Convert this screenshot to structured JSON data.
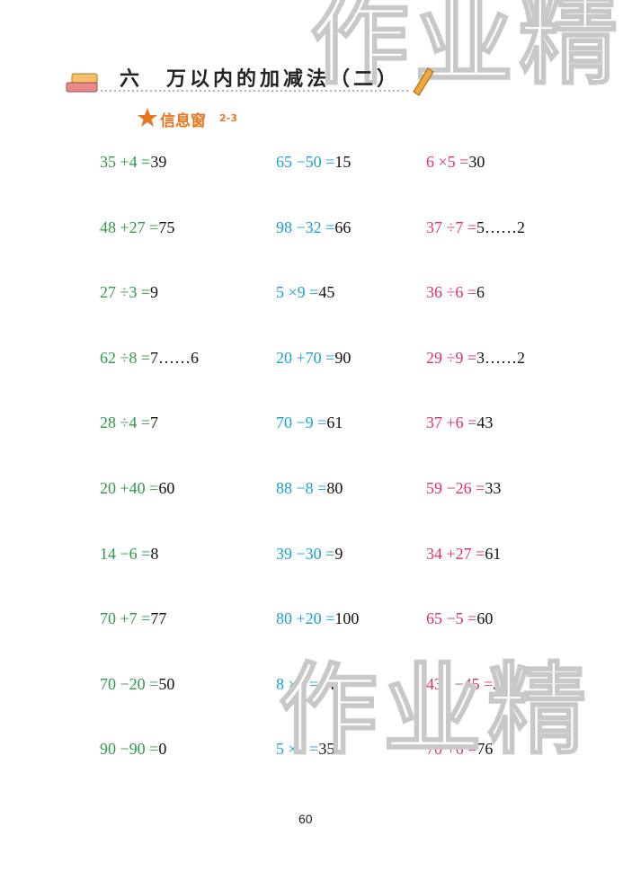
{
  "header": {
    "unit": "六",
    "title": "万以内的加减法（二）"
  },
  "section": {
    "label": "信息窗",
    "number": "2-3"
  },
  "watermark": {
    "top": "作业精",
    "bottom": "作业精"
  },
  "columns": [
    [
      {
        "q": "35 +4 =",
        "a": "39"
      },
      {
        "q": "48 +27 =",
        "a": "75"
      },
      {
        "q": "27 ÷3 =",
        "a": "9"
      },
      {
        "q": "62 ÷8 =",
        "a": "7……6"
      },
      {
        "q": "28 ÷4 =",
        "a": "7"
      },
      {
        "q": "20 +40 =",
        "a": "60"
      },
      {
        "q": "14 −6 =",
        "a": "8"
      },
      {
        "q": "70 +7 =",
        "a": "77"
      },
      {
        "q": "70 −20 =",
        "a": "50"
      },
      {
        "q": "90 −90 =",
        "a": "0"
      }
    ],
    [
      {
        "q": "65 −50 =",
        "a": "15"
      },
      {
        "q": "98 −32 =",
        "a": "66"
      },
      {
        "q": "5 ×9 =",
        "a": "45"
      },
      {
        "q": "20 +70 =",
        "a": "90"
      },
      {
        "q": "70 −9 =",
        "a": "61"
      },
      {
        "q": "88 −8 =",
        "a": "80"
      },
      {
        "q": "39 −30 =",
        "a": "9"
      },
      {
        "q": "80 +20 =",
        "a": "100"
      },
      {
        "q": "8 ×8 =",
        "a": "64"
      },
      {
        "q": "5 ×7 =",
        "a": "35"
      }
    ],
    [
      {
        "q": "6 ×5 =",
        "a": "30"
      },
      {
        "q": "37 ÷7 =",
        "a": "5……2"
      },
      {
        "q": "36 ÷6 =",
        "a": "6"
      },
      {
        "q": "29 ÷9 =",
        "a": "3……2"
      },
      {
        "q": "37 +6 =",
        "a": "43"
      },
      {
        "q": "59 −26 =",
        "a": "33"
      },
      {
        "q": "34 +27 =",
        "a": "61"
      },
      {
        "q": "65 −5 =",
        "a": "60"
      },
      {
        "q": "432 −45 =",
        "a": "387"
      },
      {
        "q": "70 +6 =",
        "a": "76"
      }
    ]
  ],
  "page_number": "60"
}
